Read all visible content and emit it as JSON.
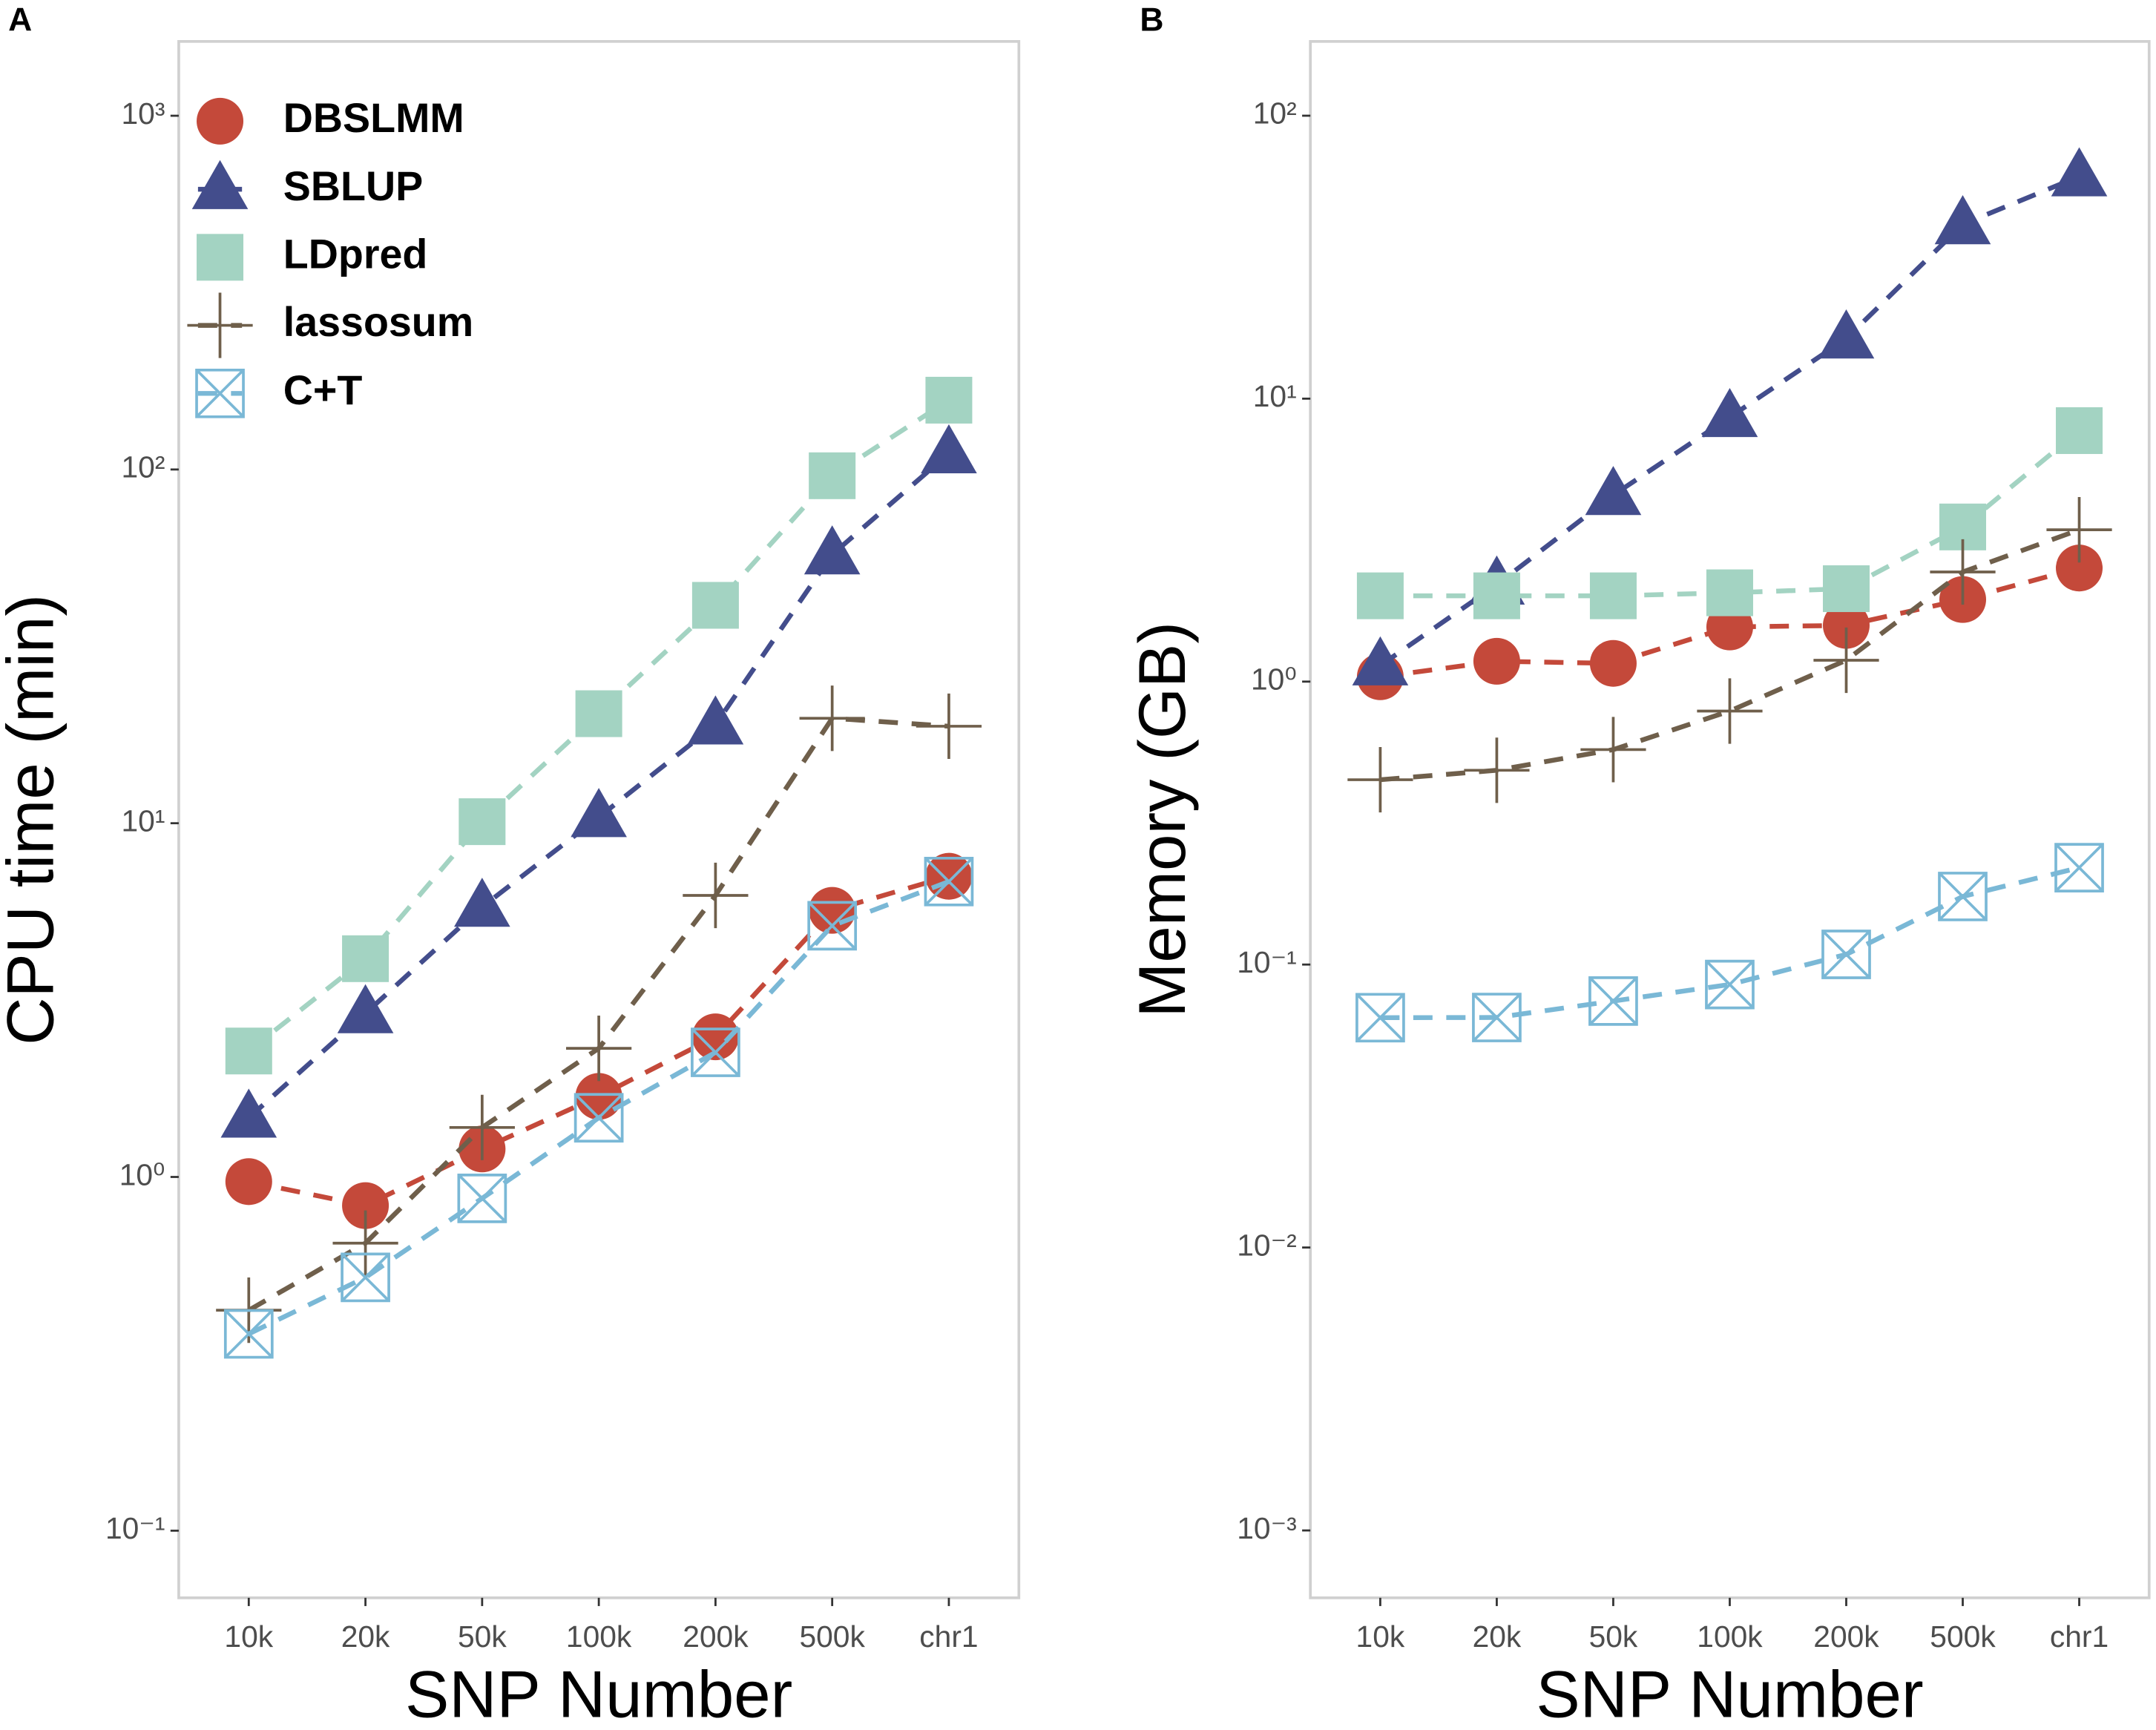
{
  "chart_data": [
    {
      "type": "line",
      "panel_label": "A",
      "ylabel": "CPU time (min)",
      "xlabel": "SNP Number",
      "log_y": true,
      "legend": "top-left",
      "categories": [
        "10k",
        "20k",
        "50k",
        "100k",
        "200k",
        "500k",
        "chr1"
      ],
      "ylim": [
        0.0646,
        1622
      ],
      "yticks": [
        {
          "value": 0.1,
          "label": "10⁻¹"
        },
        {
          "value": 1,
          "label": "10⁰"
        },
        {
          "value": 10,
          "label": "10¹"
        },
        {
          "value": 100,
          "label": "10²"
        },
        {
          "value": 1000,
          "label": "10³"
        }
      ],
      "series": [
        {
          "name": "DBSLMM",
          "color": "#c4493a",
          "marker": "circle",
          "values": [
            0.97,
            0.83,
            1.2,
            1.69,
            2.49,
            5.67,
            7.08
          ]
        },
        {
          "name": "SBLUP",
          "color": "#434d8c",
          "marker": "triangle",
          "values": [
            1.47,
            2.9,
            5.8,
            10.4,
            19,
            57.5,
            111
          ]
        },
        {
          "name": "LDpred",
          "color": "#a3d3c2",
          "marker": "square",
          "values": [
            2.27,
            4.14,
            10.1,
            20.4,
            41.3,
            96,
            157
          ]
        },
        {
          "name": "lassosum",
          "color": "#6f5f4b",
          "marker": "plus",
          "values": [
            0.42,
            0.65,
            1.38,
            2.31,
            6.25,
            19.8,
            18.8
          ]
        },
        {
          "name": "C+T",
          "color": "#7ab8d6",
          "marker": "boxx",
          "values": [
            0.36,
            0.52,
            0.87,
            1.47,
            2.25,
            5.13,
            6.84
          ]
        }
      ]
    },
    {
      "type": "line",
      "panel_label": "B",
      "ylabel": "Memory (GB)",
      "xlabel": "SNP Number",
      "log_y": true,
      "categories": [
        "10k",
        "20k",
        "50k",
        "100k",
        "200k",
        "500k",
        "chr1"
      ],
      "ylim": [
        0.000578,
        183
      ],
      "yticks": [
        {
          "value": 0.001,
          "label": "10⁻³"
        },
        {
          "value": 0.01,
          "label": "10⁻²"
        },
        {
          "value": 0.1,
          "label": "10⁻¹"
        },
        {
          "value": 1,
          "label": "10⁰"
        },
        {
          "value": 10,
          "label": "10¹"
        },
        {
          "value": 100,
          "label": "10²"
        }
      ],
      "series": [
        {
          "name": "DBSLMM",
          "color": "#c4493a",
          "marker": "circle",
          "values": [
            1.04,
            1.18,
            1.16,
            1.56,
            1.58,
            1.95,
            2.52
          ]
        },
        {
          "name": "SBLUP",
          "color": "#434d8c",
          "marker": "triangle",
          "values": [
            1.14,
            2.2,
            4.56,
            8.6,
            16.3,
            41.3,
            61
          ]
        },
        {
          "name": "LDpred",
          "color": "#a3d3c2",
          "marker": "square",
          "values": [
            2.01,
            2.01,
            2.01,
            2.06,
            2.13,
            3.52,
            7.71
          ]
        },
        {
          "name": "lassosum",
          "color": "#6f5f4b",
          "marker": "plus",
          "values": [
            0.45,
            0.486,
            0.575,
            0.787,
            1.19,
            2.44,
            3.44
          ]
        },
        {
          "name": "C+T",
          "color": "#7ab8d6",
          "marker": "boxx",
          "values": [
            0.0649,
            0.065,
            0.0743,
            0.085,
            0.1086,
            0.174,
            0.22
          ]
        }
      ]
    }
  ]
}
